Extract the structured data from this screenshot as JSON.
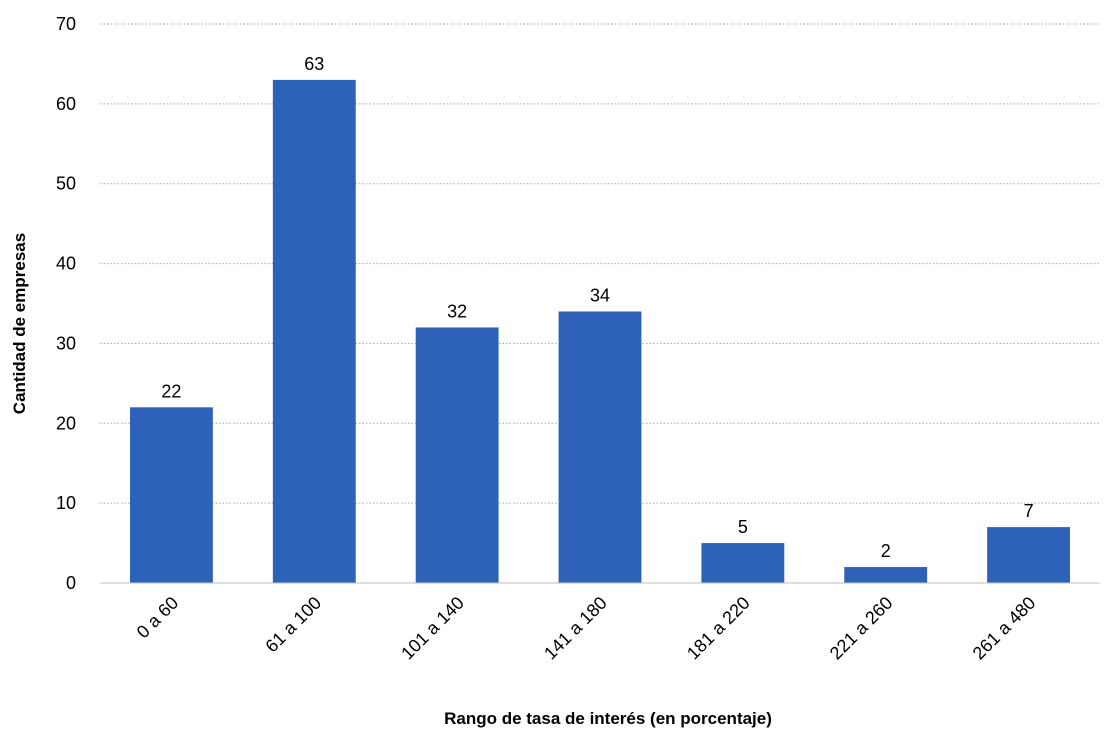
{
  "chart_data": {
    "type": "bar",
    "title": "",
    "xlabel": "Rango de tasa de interés (en porcentaje)",
    "ylabel": "Cantidad de empresas",
    "categories": [
      "0 a 60",
      "61 a 100",
      "101 a 140",
      "141 a 180",
      "181 a 220",
      "221 a 260",
      "261 a 480"
    ],
    "values": [
      22,
      63,
      32,
      34,
      5,
      2,
      7
    ],
    "data_labels": [
      "22",
      "63",
      "32",
      "34",
      "5",
      "2",
      "7"
    ],
    "ylim": [
      0,
      70
    ],
    "yticks": [
      0,
      10,
      20,
      30,
      40,
      50,
      60,
      70
    ],
    "ytick_labels": [
      "0",
      "10",
      "20",
      "30",
      "40",
      "50",
      "60",
      "70"
    ],
    "grid": true,
    "grid_style": "dotted horizontal",
    "legend": "none",
    "colors": {
      "bar": "#2e62b9",
      "grid": "#a6a6a6",
      "axis": "#bfbfbf"
    }
  }
}
